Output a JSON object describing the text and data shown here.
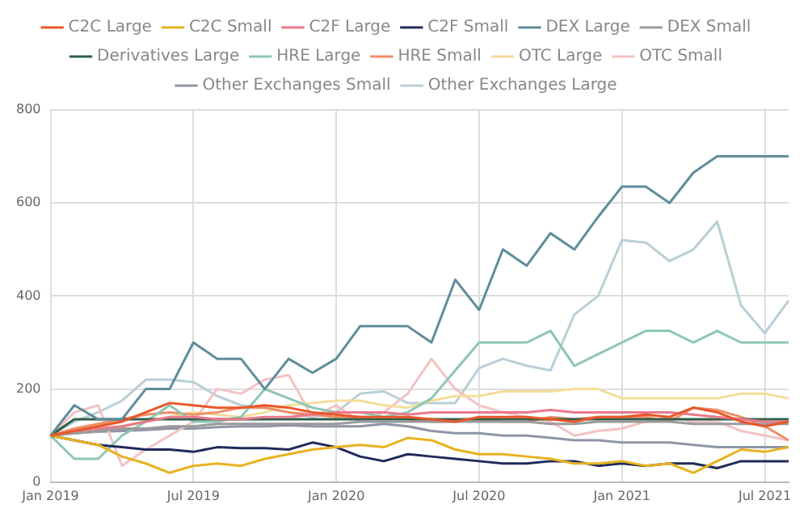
{
  "chart_data": {
    "type": "line",
    "categories": [
      "Jan 2019",
      null,
      null,
      null,
      null,
      null,
      "Jul 2019",
      null,
      null,
      null,
      null,
      null,
      "Jan 2020",
      null,
      null,
      null,
      null,
      null,
      "Jul 2020",
      null,
      null,
      null,
      null,
      null,
      "Jan 2021",
      null,
      null,
      null,
      null,
      null,
      "Jul 2021",
      null
    ],
    "series": [
      {
        "name": "C2C Large",
        "color": "#e8572a",
        "values": [
          100,
          110,
          120,
          130,
          150,
          170,
          165,
          160,
          160,
          165,
          160,
          150,
          145,
          140,
          140,
          140,
          135,
          130,
          140,
          140,
          140,
          135,
          130,
          140,
          140,
          145,
          140,
          160,
          150,
          130,
          120,
          130
        ]
      },
      {
        "name": "C2C Small",
        "color": "#e8b21f",
        "values": [
          100,
          90,
          80,
          55,
          40,
          20,
          35,
          40,
          35,
          50,
          60,
          70,
          75,
          80,
          75,
          95,
          90,
          70,
          60,
          60,
          55,
          50,
          40,
          40,
          45,
          35,
          40,
          20,
          45,
          70,
          65,
          75
        ]
      },
      {
        "name": "C2F Large",
        "color": "#e8798a",
        "values": [
          100,
          110,
          115,
          120,
          130,
          140,
          140,
          135,
          135,
          140,
          140,
          145,
          150,
          150,
          150,
          145,
          150,
          150,
          150,
          150,
          150,
          155,
          150,
          150,
          150,
          150,
          150,
          145,
          140,
          135,
          130,
          130
        ]
      },
      {
        "name": "C2F Small",
        "color": "#1f2a5c",
        "values": [
          100,
          90,
          80,
          75,
          70,
          70,
          65,
          75,
          73,
          73,
          70,
          85,
          75,
          55,
          45,
          60,
          55,
          50,
          45,
          40,
          40,
          45,
          45,
          35,
          40,
          35,
          40,
          40,
          30,
          45,
          45,
          45
        ]
      },
      {
        "name": "DEX Large",
        "color": "#5f8d99",
        "values": [
          100,
          165,
          135,
          135,
          200,
          200,
          300,
          265,
          265,
          200,
          265,
          235,
          265,
          335,
          335,
          335,
          300,
          435,
          370,
          500,
          465,
          535,
          500,
          570,
          635,
          635,
          600,
          665,
          700,
          700,
          700,
          700
        ]
      },
      {
        "name": "DEX Small",
        "color": "#9a9a9a",
        "values": [
          100,
          105,
          110,
          115,
          115,
          120,
          120,
          125,
          125,
          125,
          125,
          125,
          125,
          130,
          130,
          130,
          130,
          130,
          130,
          130,
          130,
          125,
          125,
          130,
          130,
          130,
          130,
          125,
          125,
          125,
          125,
          125
        ]
      },
      {
        "name": "Derivatives Large",
        "color": "#2f5e4b",
        "values": [
          100,
          135,
          135,
          135,
          135,
          135,
          135,
          135,
          135,
          135,
          135,
          135,
          135,
          135,
          135,
          135,
          135,
          135,
          135,
          135,
          135,
          135,
          135,
          135,
          135,
          135,
          135,
          135,
          135,
          135,
          135,
          135
        ]
      },
      {
        "name": "HRE Large",
        "color": "#8cc7b4",
        "values": [
          100,
          50,
          50,
          100,
          130,
          165,
          130,
          130,
          140,
          200,
          180,
          160,
          150,
          150,
          140,
          150,
          180,
          240,
          300,
          300,
          300,
          325,
          250,
          275,
          300,
          325,
          325,
          300,
          325,
          300,
          300,
          300
        ]
      },
      {
        "name": "HRE Small",
        "color": "#ef8e68",
        "values": [
          100,
          115,
          125,
          135,
          145,
          150,
          145,
          150,
          160,
          160,
          150,
          145,
          140,
          140,
          140,
          135,
          130,
          130,
          135,
          130,
          130,
          140,
          135,
          140,
          140,
          140,
          130,
          160,
          155,
          140,
          120,
          90
        ]
      },
      {
        "name": "OTC Large",
        "color": "#f5dd9a",
        "values": [
          100,
          105,
          110,
          120,
          130,
          140,
          150,
          145,
          140,
          150,
          165,
          170,
          175,
          175,
          165,
          160,
          175,
          185,
          185,
          195,
          195,
          195,
          200,
          200,
          180,
          180,
          180,
          180,
          180,
          190,
          190,
          180
        ]
      },
      {
        "name": "OTC Small",
        "color": "#f3c3c3",
        "values": [
          100,
          150,
          165,
          35,
          70,
          100,
          130,
          200,
          190,
          220,
          230,
          140,
          165,
          130,
          150,
          190,
          265,
          200,
          165,
          150,
          140,
          130,
          100,
          110,
          115,
          130,
          140,
          130,
          130,
          110,
          100,
          90
        ]
      },
      {
        "name": "Other Exchanges Small",
        "color": "#8f95a8",
        "values": [
          100,
          105,
          108,
          110,
          112,
          115,
          115,
          118,
          120,
          120,
          122,
          120,
          120,
          120,
          125,
          120,
          110,
          105,
          105,
          100,
          100,
          95,
          90,
          90,
          85,
          85,
          85,
          80,
          75,
          75,
          75,
          75
        ]
      },
      {
        "name": "Other Exchanges Large",
        "color": "#b9cfd6",
        "values": [
          100,
          130,
          150,
          175,
          220,
          220,
          215,
          185,
          165,
          160,
          150,
          140,
          150,
          190,
          195,
          170,
          170,
          170,
          245,
          265,
          250,
          240,
          360,
          400,
          520,
          515,
          475,
          500,
          560,
          380,
          320,
          390
        ]
      }
    ],
    "ylim": [
      0,
      800
    ],
    "yticks": [
      0,
      200,
      400,
      600,
      800
    ],
    "grid": true,
    "legend": "top",
    "marker": "none",
    "line_style": "solid"
  }
}
